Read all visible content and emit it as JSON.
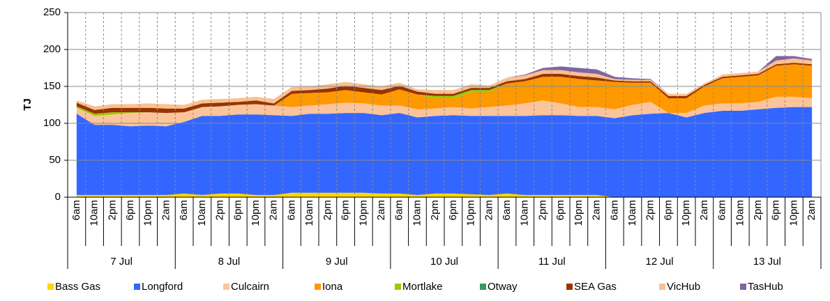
{
  "chart_data": {
    "type": "stacked_area",
    "y_label": "TJ",
    "categories": [
      "6am",
      "10am",
      "2pm",
      "6pm",
      "10pm",
      "2am",
      "6am",
      "10am",
      "2pm",
      "6pm",
      "10pm",
      "2am",
      "6am",
      "10am",
      "2pm",
      "6pm",
      "10pm",
      "2am",
      "6am",
      "10am",
      "2pm",
      "6pm",
      "10pm",
      "2am",
      "6am",
      "10am",
      "2pm",
      "6pm",
      "10pm",
      "2am",
      "6am",
      "10am",
      "2pm",
      "6pm",
      "10pm",
      "2am",
      "6am",
      "10am",
      "2pm",
      "6pm",
      "10pm",
      "2am"
    ],
    "groups": [
      "7 Jul",
      "8 Jul",
      "9 Jul",
      "10 Jul",
      "11 Jul",
      "12 Jul",
      "13 Jul"
    ],
    "ylim": [
      0,
      250
    ],
    "yticks": [
      0,
      50,
      100,
      150,
      200,
      250
    ],
    "grid": true,
    "series": [
      {
        "name": "Bass Gas",
        "color": "#ffd700",
        "values": [
          3,
          3,
          3,
          3,
          3,
          3,
          5,
          3,
          5,
          5,
          3,
          3,
          6,
          6,
          6,
          6,
          6,
          5,
          5,
          3,
          5,
          5,
          4,
          3,
          5,
          3,
          3,
          3,
          3,
          3,
          0,
          0,
          0,
          0,
          0,
          0,
          0,
          0,
          0,
          0,
          0,
          0
        ]
      },
      {
        "name": "Longford",
        "color": "#3366ff",
        "values": [
          110,
          95,
          95,
          93,
          94,
          93,
          97,
          107,
          105,
          107,
          109,
          108,
          104,
          107,
          107,
          108,
          108,
          106,
          109,
          105,
          105,
          106,
          106,
          107,
          105,
          107,
          108,
          108,
          107,
          107,
          107,
          111,
          113,
          114,
          108,
          114,
          117,
          117,
          119,
          121,
          122,
          122
        ]
      },
      {
        "name": "Culcairn",
        "color": "#fbc49a",
        "values": [
          8,
          12,
          14,
          18,
          18,
          18,
          13,
          12,
          13,
          13,
          14,
          13,
          12,
          11,
          13,
          14,
          13,
          13,
          10,
          11,
          10,
          11,
          10,
          12,
          14,
          17,
          20,
          16,
          12,
          12,
          12,
          14,
          16,
          0,
          6,
          10,
          10,
          10,
          10,
          15,
          14,
          12
        ]
      },
      {
        "name": "Iona",
        "color": "#ff9900",
        "values": [
          0,
          0,
          0,
          0,
          0,
          0,
          0,
          0,
          0,
          0,
          0,
          0,
          18,
          17,
          16,
          17,
          15,
          15,
          22,
          20,
          14,
          12,
          22,
          20,
          30,
          30,
          32,
          36,
          38,
          36,
          37,
          30,
          26,
          20,
          20,
          26,
          34,
          36,
          36,
          42,
          44,
          44
        ]
      },
      {
        "name": "Mortlake",
        "color": "#99cc00",
        "values": [
          2,
          3,
          3,
          1,
          0,
          0,
          0,
          0,
          0,
          0,
          0,
          0,
          0,
          0,
          0,
          0,
          0,
          0,
          0,
          0,
          3,
          3,
          3,
          3,
          0,
          0,
          0,
          0,
          0,
          0,
          0,
          0,
          0,
          0,
          0,
          0,
          0,
          0,
          0,
          0,
          0,
          0
        ]
      },
      {
        "name": "Otway",
        "color": "#339966",
        "values": [
          0,
          0,
          0,
          0,
          0,
          0,
          0,
          0,
          0,
          0,
          0,
          0,
          0,
          0,
          0,
          0,
          0,
          0,
          0,
          0,
          0,
          0,
          0,
          0,
          0,
          0,
          0,
          0,
          0,
          0,
          0,
          0,
          0,
          0,
          0,
          0,
          0,
          0,
          0,
          0,
          0,
          0
        ]
      },
      {
        "name": "SEA Gas",
        "color": "#993300",
        "values": [
          5,
          5,
          6,
          6,
          6,
          6,
          5,
          5,
          5,
          4,
          5,
          3,
          4,
          4,
          5,
          6,
          6,
          6,
          5,
          4,
          3,
          3,
          3,
          3,
          3,
          3,
          4,
          4,
          4,
          4,
          2,
          2,
          2,
          3,
          3,
          2,
          2,
          2,
          2,
          2,
          2,
          2
        ]
      },
      {
        "name": "VicHub",
        "color": "#fac090",
        "values": [
          3,
          5,
          5,
          5,
          6,
          6,
          5,
          5,
          5,
          5,
          5,
          6,
          5,
          5,
          6,
          5,
          5,
          5,
          4,
          3,
          5,
          5,
          5,
          3,
          5,
          5,
          5,
          5,
          5,
          5,
          2,
          2,
          2,
          3,
          3,
          2,
          3,
          3,
          3,
          5,
          6,
          5
        ]
      },
      {
        "name": "TasHub",
        "color": "#8064a2",
        "values": [
          0,
          0,
          0,
          0,
          0,
          0,
          0,
          0,
          0,
          0,
          0,
          0,
          0,
          0,
          0,
          0,
          0,
          0,
          0,
          0,
          0,
          0,
          0,
          0,
          0,
          1,
          3,
          5,
          6,
          6,
          3,
          2,
          1,
          0,
          0,
          0,
          0,
          0,
          0,
          6,
          3,
          2
        ]
      }
    ]
  }
}
